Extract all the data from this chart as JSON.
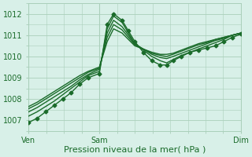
{
  "title": "",
  "xlabel": "Pression niveau de la mer( hPa )",
  "ylabel": "",
  "bg_color": "#d8f0e8",
  "grid_color": "#aacfba",
  "line_color": "#1a6b2a",
  "ylim": [
    1006.5,
    1012.5
  ],
  "xtick_labels": [
    "Ven",
    "Sam",
    "Dim"
  ],
  "xtick_pos": [
    0,
    0.3333,
    1.0
  ],
  "ytick_vals": [
    1007,
    1008,
    1009,
    1010,
    1011,
    1012
  ],
  "font_size_label": 8,
  "font_size_tick": 7,
  "line_width": 1.0,
  "marker_style": "D",
  "marker_size": 2.5,
  "series": [
    {
      "x": [
        0.0,
        0.04,
        0.08,
        0.12,
        0.16,
        0.2,
        0.24,
        0.28,
        0.333,
        0.37,
        0.4,
        0.44,
        0.47,
        0.5,
        0.54,
        0.58,
        0.62,
        0.65,
        0.68,
        0.72,
        0.76,
        0.8,
        0.84,
        0.88,
        0.92,
        0.96,
        1.0
      ],
      "y": [
        1006.9,
        1007.1,
        1007.4,
        1007.7,
        1008.0,
        1008.3,
        1008.7,
        1009.0,
        1009.2,
        1011.5,
        1012.0,
        1011.7,
        1011.2,
        1010.7,
        1010.2,
        1009.8,
        1009.6,
        1009.6,
        1009.8,
        1010.0,
        1010.2,
        1010.3,
        1010.4,
        1010.5,
        1010.7,
        1010.9,
        1011.05
      ],
      "marker": true
    },
    {
      "x": [
        0.0,
        0.04,
        0.08,
        0.12,
        0.16,
        0.2,
        0.24,
        0.28,
        0.333,
        0.37,
        0.4,
        0.44,
        0.47,
        0.5,
        0.54,
        0.58,
        0.62,
        0.65,
        0.68,
        0.72,
        0.76,
        0.8,
        0.84,
        0.88,
        0.92,
        0.96,
        1.0
      ],
      "y": [
        1007.2,
        1007.4,
        1007.65,
        1007.9,
        1008.2,
        1008.5,
        1008.8,
        1009.1,
        1009.3,
        1011.3,
        1011.9,
        1011.6,
        1011.1,
        1010.6,
        1010.3,
        1010.0,
        1009.8,
        1009.7,
        1009.85,
        1010.05,
        1010.2,
        1010.35,
        1010.5,
        1010.65,
        1010.8,
        1011.0,
        1011.1
      ],
      "marker": false
    },
    {
      "x": [
        0.0,
        0.04,
        0.08,
        0.12,
        0.16,
        0.2,
        0.24,
        0.28,
        0.333,
        0.37,
        0.4,
        0.44,
        0.47,
        0.5,
        0.54,
        0.58,
        0.62,
        0.65,
        0.68,
        0.72,
        0.76,
        0.8,
        0.84,
        0.88,
        0.92,
        0.96,
        1.0
      ],
      "y": [
        1007.4,
        1007.6,
        1007.85,
        1008.1,
        1008.35,
        1008.6,
        1008.9,
        1009.15,
        1009.4,
        1011.1,
        1011.7,
        1011.4,
        1011.0,
        1010.6,
        1010.35,
        1010.1,
        1009.95,
        1009.9,
        1010.0,
        1010.15,
        1010.3,
        1010.45,
        1010.6,
        1010.75,
        1010.85,
        1011.0,
        1011.1
      ],
      "marker": false
    },
    {
      "x": [
        0.0,
        0.04,
        0.08,
        0.12,
        0.16,
        0.2,
        0.24,
        0.28,
        0.333,
        0.37,
        0.4,
        0.44,
        0.47,
        0.5,
        0.54,
        0.58,
        0.62,
        0.65,
        0.68,
        0.72,
        0.76,
        0.8,
        0.84,
        0.88,
        0.92,
        0.96,
        1.0
      ],
      "y": [
        1007.55,
        1007.75,
        1008.0,
        1008.25,
        1008.5,
        1008.75,
        1009.0,
        1009.25,
        1009.45,
        1010.9,
        1011.5,
        1011.25,
        1010.9,
        1010.55,
        1010.35,
        1010.15,
        1010.05,
        1010.0,
        1010.1,
        1010.25,
        1010.4,
        1010.55,
        1010.65,
        1010.8,
        1010.9,
        1011.0,
        1011.1
      ],
      "marker": false
    },
    {
      "x": [
        0.0,
        0.04,
        0.08,
        0.12,
        0.16,
        0.2,
        0.24,
        0.28,
        0.333,
        0.37,
        0.4,
        0.44,
        0.47,
        0.5,
        0.54,
        0.58,
        0.62,
        0.65,
        0.68,
        0.72,
        0.76,
        0.8,
        0.84,
        0.88,
        0.92,
        0.96,
        1.0
      ],
      "y": [
        1007.65,
        1007.85,
        1008.1,
        1008.35,
        1008.6,
        1008.85,
        1009.1,
        1009.3,
        1009.5,
        1010.7,
        1011.3,
        1011.1,
        1010.8,
        1010.5,
        1010.35,
        1010.2,
        1010.1,
        1010.1,
        1010.15,
        1010.3,
        1010.45,
        1010.6,
        1010.7,
        1010.8,
        1010.9,
        1011.0,
        1011.1
      ],
      "marker": false
    }
  ],
  "vline_x": [
    0.0,
    0.3333,
    1.0
  ]
}
